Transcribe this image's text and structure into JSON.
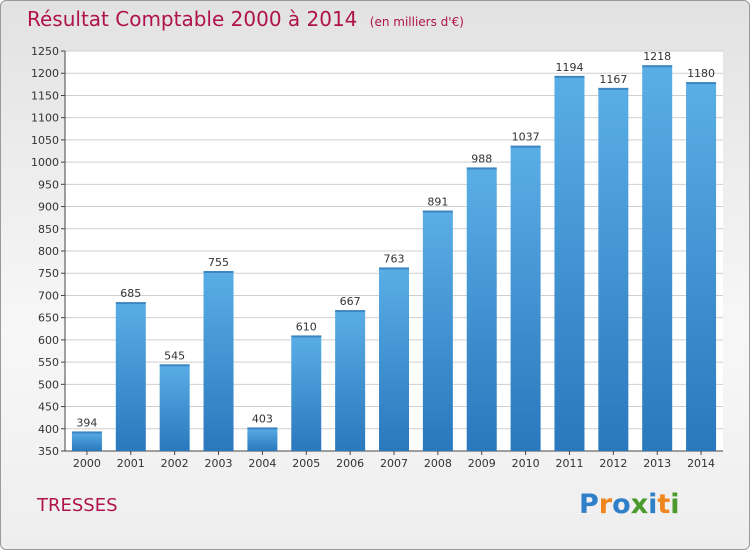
{
  "title": "Résultat Comptable 2000 à 2014",
  "subtitle": "(en milliers d'€)",
  "commune": "TRESSES",
  "logo": {
    "text": "Proxiti",
    "letters": [
      {
        "ch": "P",
        "color": "#2f7fc9"
      },
      {
        "ch": "r",
        "color": "#f0851d"
      },
      {
        "ch": "o",
        "color": "#2f7fc9"
      },
      {
        "ch": "x",
        "color": "#4a9a2d"
      },
      {
        "ch": "i",
        "color": "#2f7fc9"
      },
      {
        "ch": "t",
        "color": "#f0851d"
      },
      {
        "ch": "i",
        "color": "#4a9a2d"
      }
    ]
  },
  "colors": {
    "title": "#b0124c",
    "bar_top": "#5aaee6",
    "bar_bottom": "#2a78bd",
    "grid": "#cfcfcf"
  },
  "chart_data": {
    "type": "bar",
    "categories": [
      "2000",
      "2001",
      "2002",
      "2003",
      "2004",
      "2005",
      "2006",
      "2007",
      "2008",
      "2009",
      "2010",
      "2011",
      "2012",
      "2013",
      "2014"
    ],
    "values": [
      394,
      685,
      545,
      755,
      403,
      610,
      667,
      763,
      891,
      988,
      1037,
      1194,
      1167,
      1218,
      1180
    ],
    "ylim": [
      350,
      1250
    ],
    "yticks": [
      350,
      400,
      450,
      500,
      550,
      600,
      650,
      700,
      750,
      800,
      850,
      900,
      950,
      1000,
      1050,
      1100,
      1150,
      1200,
      1250
    ],
    "grid": true
  }
}
